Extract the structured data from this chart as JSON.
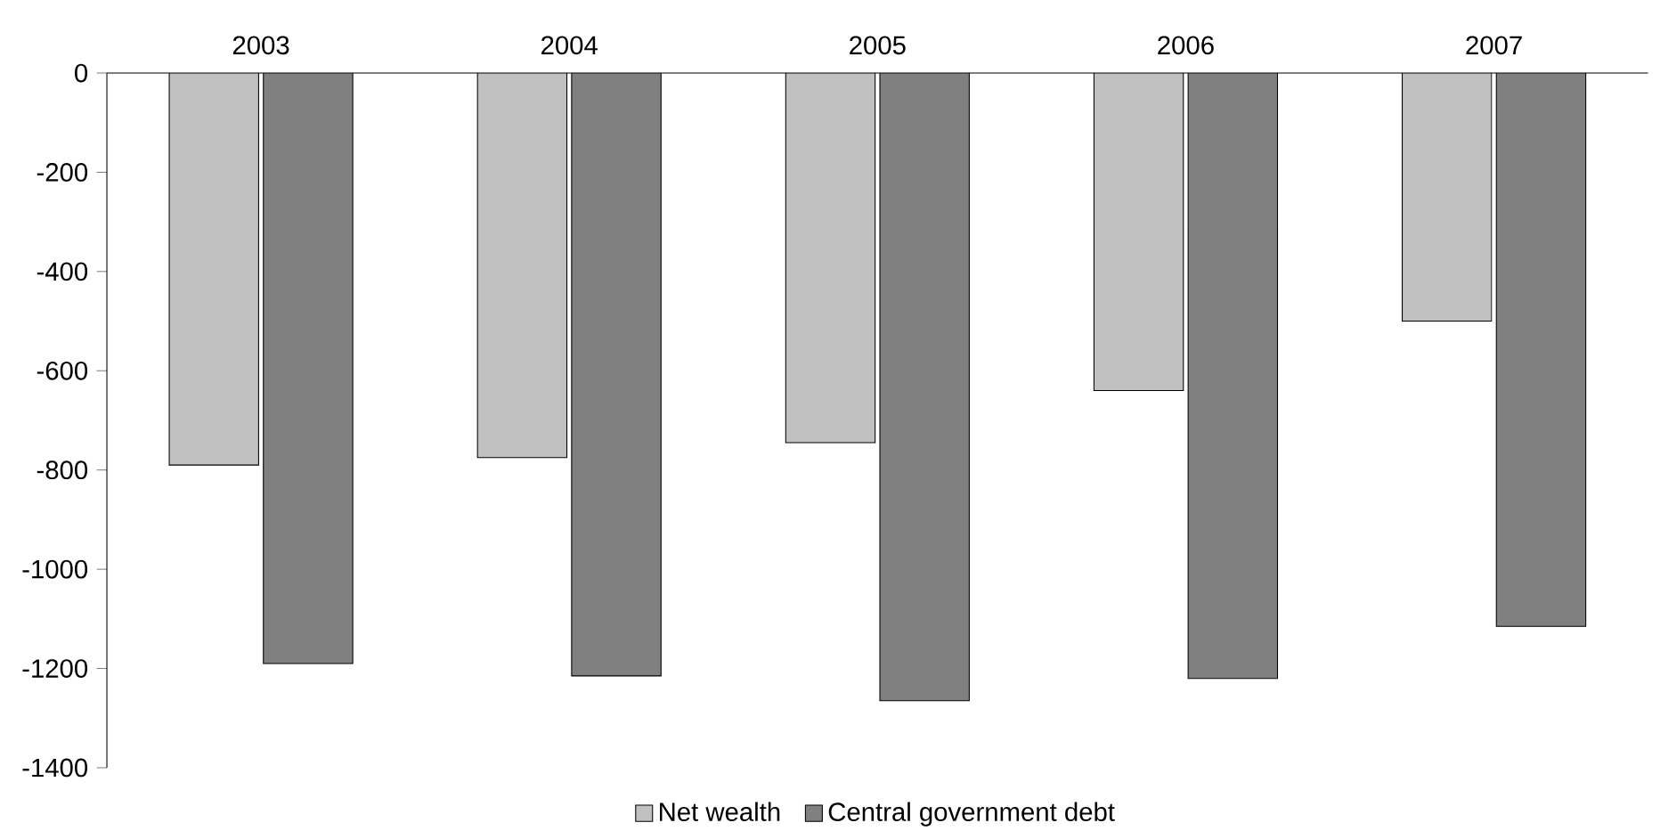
{
  "chart_data": {
    "type": "bar",
    "categories": [
      "2003",
      "2004",
      "2005",
      "2006",
      "2007"
    ],
    "series": [
      {
        "name": "Net wealth",
        "color": "#c0c0c0",
        "values": [
          -790,
          -775,
          -745,
          -640,
          -500
        ]
      },
      {
        "name": "Central government debt",
        "color": "#808080",
        "values": [
          -1190,
          -1215,
          -1265,
          -1220,
          -1115
        ]
      }
    ],
    "ylim": [
      -1400,
      0
    ],
    "yticks": [
      -1400,
      -1200,
      -1000,
      -800,
      -600,
      -400,
      -200,
      0
    ],
    "legend": "bottom"
  }
}
